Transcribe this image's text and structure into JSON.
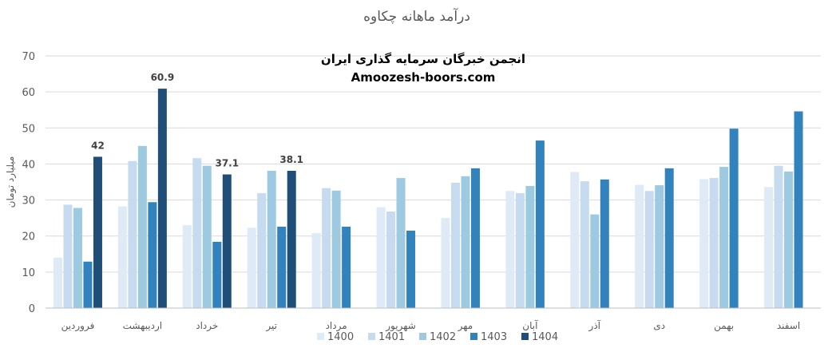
{
  "chart_data": {
    "type": "bar",
    "title": "درآمد ماهانه چکاوه",
    "ylabel": "میلیارد تومان",
    "xlabel": "",
    "ylim": [
      0,
      70
    ],
    "yticks": [
      0,
      10,
      20,
      30,
      40,
      50,
      60,
      70
    ],
    "grid": true,
    "legend_position": "bottom",
    "categories": [
      "فروردین",
      "اردیبهشت",
      "خرداد",
      "تیر",
      "مرداد",
      "شهریور",
      "مهر",
      "آبان",
      "آذر",
      "دی",
      "بهمن",
      "اسفند"
    ],
    "series": [
      {
        "name": "1400",
        "color": "#deebf7",
        "values": [
          14,
          28.2,
          23,
          22.3,
          20.8,
          28,
          25,
          32.5,
          37.8,
          34.2,
          35.8,
          33.6
        ]
      },
      {
        "name": "1401",
        "color": "#c6dbef",
        "values": [
          28.7,
          40.8,
          41.6,
          31.9,
          33.3,
          26.8,
          34.8,
          31.9,
          35.2,
          32.5,
          36.1,
          39.5
        ]
      },
      {
        "name": "1402",
        "color": "#9ecae1",
        "values": [
          27.8,
          45,
          39.5,
          38.1,
          32.6,
          36.1,
          36.6,
          33.9,
          26,
          34.1,
          39.2,
          37.9
        ]
      },
      {
        "name": "1403",
        "color": "#3182bd",
        "values": [
          12.9,
          29.4,
          18.4,
          22.6,
          22.6,
          21.5,
          38.8,
          46.5,
          35.7,
          38.8,
          49.8,
          54.6
        ]
      },
      {
        "name": "1404",
        "color": "#1f4e79",
        "values": [
          42,
          60.9,
          37.1,
          38.1,
          null,
          null,
          null,
          null,
          null,
          null,
          null,
          null
        ]
      }
    ],
    "data_labels": [
      {
        "category": "فروردین",
        "series": "1404",
        "text": "42"
      },
      {
        "category": "اردیبهشت",
        "series": "1404",
        "text": "60.9"
      },
      {
        "category": "خرداد",
        "series": "1404",
        "text": "37.1"
      },
      {
        "category": "تیر",
        "series": "1404",
        "text": "38.1"
      }
    ],
    "annotations": [
      "انجمن خبرگان سرمایه گذاری ایران",
      "Amoozesh-boors.com"
    ]
  }
}
